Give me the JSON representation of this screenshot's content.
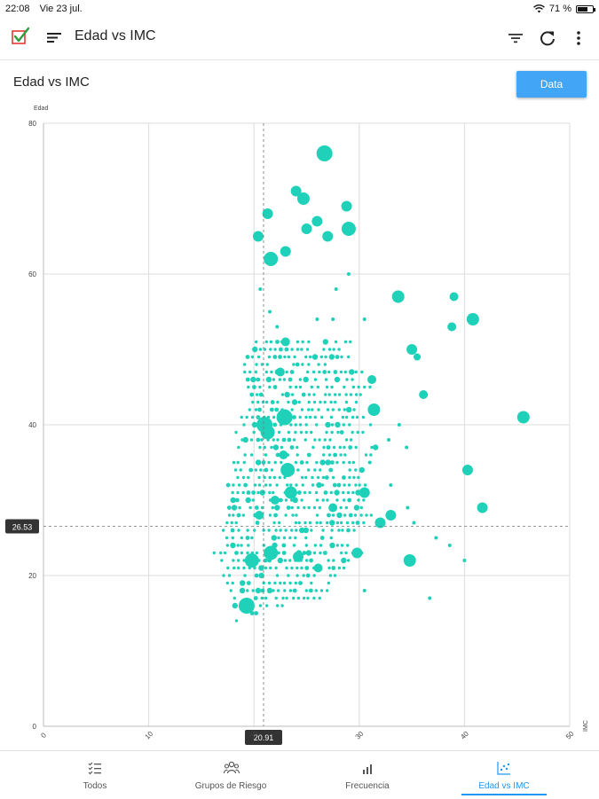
{
  "status_bar": {
    "time": "22:08",
    "date": "Vie 23 jul.",
    "battery_percent": "71 %",
    "battery_level": 0.71
  },
  "app_bar": {
    "title": "Edad vs IMC",
    "icons": [
      "checkbox-logo-icon",
      "menu-icon",
      "filter-icon",
      "refresh-icon",
      "more-vert-icon"
    ]
  },
  "page": {
    "title": "Edad vs IMC",
    "data_button": "Data"
  },
  "chart_data": {
    "type": "scatter",
    "title": "",
    "xlabel": "IMC",
    "ylabel": "Edad",
    "xlim": [
      0,
      50
    ],
    "ylim": [
      0,
      80
    ],
    "xticks": [
      0,
      10,
      20,
      30,
      40,
      50
    ],
    "yticks": [
      0,
      20,
      40,
      60,
      80
    ],
    "grid": true,
    "color": "#1fd1b9",
    "crosshair": {
      "x": 20.91,
      "y": 26.53,
      "x_label": "20.91",
      "y_label": "26.53"
    },
    "large_points": [
      {
        "x": 26.7,
        "y": 76,
        "r": 9
      },
      {
        "x": 24,
        "y": 71,
        "r": 6
      },
      {
        "x": 24.7,
        "y": 70,
        "r": 7
      },
      {
        "x": 28.8,
        "y": 69,
        "r": 6
      },
      {
        "x": 21.3,
        "y": 68,
        "r": 6
      },
      {
        "x": 26,
        "y": 67,
        "r": 6
      },
      {
        "x": 29,
        "y": 66,
        "r": 8
      },
      {
        "x": 25,
        "y": 66,
        "r": 6
      },
      {
        "x": 20.4,
        "y": 65,
        "r": 6
      },
      {
        "x": 27,
        "y": 65,
        "r": 6
      },
      {
        "x": 23,
        "y": 63,
        "r": 6
      },
      {
        "x": 21.6,
        "y": 62,
        "r": 8
      },
      {
        "x": 33.7,
        "y": 57,
        "r": 7
      },
      {
        "x": 39,
        "y": 57,
        "r": 5
      },
      {
        "x": 40.8,
        "y": 54,
        "r": 7
      },
      {
        "x": 38.8,
        "y": 53,
        "r": 5
      },
      {
        "x": 35,
        "y": 50,
        "r": 6
      },
      {
        "x": 35.5,
        "y": 49,
        "r": 4
      },
      {
        "x": 31.2,
        "y": 46,
        "r": 5
      },
      {
        "x": 36.1,
        "y": 44,
        "r": 5
      },
      {
        "x": 31.4,
        "y": 42,
        "r": 7
      },
      {
        "x": 45.6,
        "y": 41,
        "r": 7
      },
      {
        "x": 22.9,
        "y": 41,
        "r": 9
      },
      {
        "x": 21,
        "y": 40,
        "r": 9
      },
      {
        "x": 21.3,
        "y": 39,
        "r": 8
      },
      {
        "x": 23.2,
        "y": 34,
        "r": 8
      },
      {
        "x": 40.3,
        "y": 34,
        "r": 6
      },
      {
        "x": 23.5,
        "y": 31,
        "r": 7
      },
      {
        "x": 30.5,
        "y": 31,
        "r": 6
      },
      {
        "x": 41.7,
        "y": 29,
        "r": 6
      },
      {
        "x": 33,
        "y": 28,
        "r": 6
      },
      {
        "x": 32,
        "y": 27,
        "r": 6
      },
      {
        "x": 21.6,
        "y": 23,
        "r": 8
      },
      {
        "x": 29.8,
        "y": 23,
        "r": 6
      },
      {
        "x": 34.8,
        "y": 22,
        "r": 7
      },
      {
        "x": 19.8,
        "y": 22,
        "r": 8
      },
      {
        "x": 24.2,
        "y": 22.5,
        "r": 6
      },
      {
        "x": 19.3,
        "y": 16,
        "r": 9
      },
      {
        "x": 20.5,
        "y": 28,
        "r": 5
      },
      {
        "x": 22.5,
        "y": 47,
        "r": 5
      },
      {
        "x": 23,
        "y": 51,
        "r": 5
      },
      {
        "x": 22.8,
        "y": 36,
        "r": 5
      },
      {
        "x": 22,
        "y": 30,
        "r": 5
      },
      {
        "x": 26.1,
        "y": 21,
        "r": 5
      },
      {
        "x": 27.5,
        "y": 29,
        "r": 5
      }
    ],
    "small_points": [
      {
        "x": 27.8,
        "y": 58
      },
      {
        "x": 29,
        "y": 60
      },
      {
        "x": 20.6,
        "y": 58
      },
      {
        "x": 21.5,
        "y": 55
      },
      {
        "x": 22.2,
        "y": 53
      },
      {
        "x": 26,
        "y": 54
      },
      {
        "x": 27.5,
        "y": 54
      },
      {
        "x": 30.5,
        "y": 54
      },
      {
        "x": 40,
        "y": 22
      },
      {
        "x": 37.3,
        "y": 25
      },
      {
        "x": 38.6,
        "y": 24
      },
      {
        "x": 36.7,
        "y": 17
      },
      {
        "x": 34.6,
        "y": 29
      },
      {
        "x": 35.2,
        "y": 27
      },
      {
        "x": 34.5,
        "y": 37
      },
      {
        "x": 33.8,
        "y": 40
      },
      {
        "x": 32.8,
        "y": 38
      },
      {
        "x": 31,
        "y": 35
      },
      {
        "x": 33,
        "y": 32
      },
      {
        "x": 30.5,
        "y": 18
      }
    ],
    "dense_cluster": {
      "rows": [
        {
          "y": 51,
          "x_from": 20.2,
          "x_to": 29.4
        },
        {
          "y": 50,
          "x_from": 19.6,
          "x_to": 28.5
        },
        {
          "y": 49,
          "x_from": 19.4,
          "x_to": 29.2
        },
        {
          "y": 48,
          "x_from": 19.2,
          "x_to": 28.3
        },
        {
          "y": 47,
          "x_from": 19.2,
          "x_to": 30.6
        },
        {
          "y": 46,
          "x_from": 19.4,
          "x_to": 29.8
        },
        {
          "y": 45,
          "x_from": 19.5,
          "x_to": 31.2
        },
        {
          "y": 44,
          "x_from": 19.7,
          "x_to": 30.5
        },
        {
          "y": 43,
          "x_from": 19.3,
          "x_to": 30.2
        },
        {
          "y": 42,
          "x_from": 19.1,
          "x_to": 29.7
        },
        {
          "y": 41,
          "x_from": 17.9,
          "x_to": 30.6
        },
        {
          "y": 40,
          "x_from": 19.0,
          "x_to": 31.4
        },
        {
          "y": 39,
          "x_from": 18.4,
          "x_to": 30.8
        },
        {
          "y": 38,
          "x_from": 18.8,
          "x_to": 29.6
        },
        {
          "y": 37,
          "x_from": 18.6,
          "x_to": 32.5
        },
        {
          "y": 36,
          "x_from": 19.2,
          "x_to": 31.6
        },
        {
          "y": 35,
          "x_from": 18.0,
          "x_to": 31.2
        },
        {
          "y": 34,
          "x_from": 18.2,
          "x_to": 30.6
        },
        {
          "y": 33,
          "x_from": 18.0,
          "x_to": 30.3
        },
        {
          "y": 32,
          "x_from": 17.6,
          "x_to": 31.0
        },
        {
          "y": 31,
          "x_from": 17.4,
          "x_to": 30.2
        },
        {
          "y": 30,
          "x_from": 18.0,
          "x_to": 30.6
        },
        {
          "y": 29,
          "x_from": 17.2,
          "x_to": 30.2
        },
        {
          "y": 28,
          "x_from": 17.6,
          "x_to": 31.2
        },
        {
          "y": 27,
          "x_from": 17.4,
          "x_to": 30.5
        },
        {
          "y": 26,
          "x_from": 17.0,
          "x_to": 29.8
        },
        {
          "y": 25,
          "x_from": 16.9,
          "x_to": 30.2
        },
        {
          "y": 24,
          "x_from": 17.4,
          "x_to": 29.3
        },
        {
          "y": 23,
          "x_from": 16.3,
          "x_to": 30.5
        },
        {
          "y": 22,
          "x_from": 17.0,
          "x_to": 29.2
        },
        {
          "y": 21,
          "x_from": 17.6,
          "x_to": 28.6
        },
        {
          "y": 20,
          "x_from": 17.2,
          "x_to": 27.8
        },
        {
          "y": 19,
          "x_from": 17.5,
          "x_to": 27.2
        },
        {
          "y": 18,
          "x_from": 17.9,
          "x_to": 27.0
        },
        {
          "y": 17,
          "x_from": 18.2,
          "x_to": 26.4
        },
        {
          "y": 16,
          "x_from": 18.2,
          "x_to": 22.7
        },
        {
          "y": 15,
          "x_from": 18.8,
          "x_to": 20.4
        },
        {
          "y": 14,
          "x_from": 18.4,
          "x_to": 18.8
        }
      ]
    }
  },
  "bottom_nav": {
    "items": [
      {
        "label": "Todos",
        "icon": "checklist-icon",
        "active": false
      },
      {
        "label": "Grupos de Riesgo",
        "icon": "groups-icon",
        "active": false
      },
      {
        "label": "Frecuencia",
        "icon": "bar-chart-icon",
        "active": false
      },
      {
        "label": "Edad vs IMC",
        "icon": "scatter-icon",
        "active": true
      }
    ]
  }
}
